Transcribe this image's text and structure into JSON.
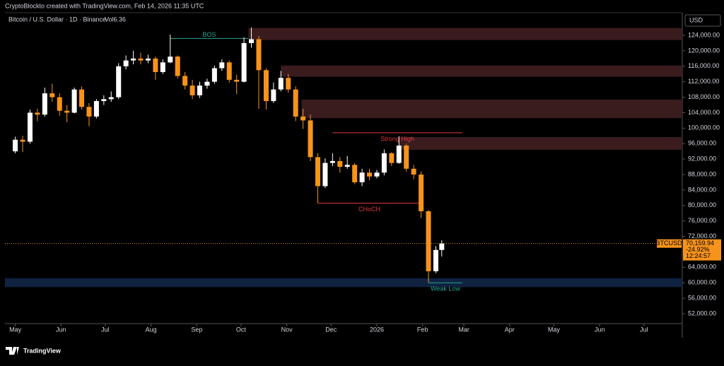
{
  "chart_data": {
    "type": "candlestick",
    "credit": "CryptoBlockto created with TradingView.com, Feb 14, 2026 11:35 UTC",
    "title": "Bitcoin / U.S. Dollar · 1D · Binance",
    "indicator": "Vol6.36",
    "currency": "USD",
    "brand": "TradingView",
    "up_color": "#ffffff",
    "down_color": "#f7931a",
    "x": [
      "2025-05-01",
      "2025-05-06",
      "2025-05-11",
      "2025-05-16",
      "2025-05-21",
      "2025-05-26",
      "2025-05-31",
      "2025-06-05",
      "2025-06-10",
      "2025-06-15",
      "2025-06-20",
      "2025-06-25",
      "2025-06-30",
      "2025-07-05",
      "2025-07-10",
      "2025-07-15",
      "2025-07-20",
      "2025-07-25",
      "2025-07-30",
      "2025-08-04",
      "2025-08-09",
      "2025-08-14",
      "2025-08-19",
      "2025-08-24",
      "2025-08-29",
      "2025-09-03",
      "2025-09-08",
      "2025-09-13",
      "2025-09-18",
      "2025-09-23",
      "2025-09-28",
      "2025-10-03",
      "2025-10-08",
      "2025-10-13",
      "2025-10-18",
      "2025-10-23",
      "2025-10-28",
      "2025-11-02",
      "2025-11-07",
      "2025-11-12",
      "2025-11-17",
      "2025-11-22",
      "2025-11-27",
      "2025-12-02",
      "2025-12-07",
      "2025-12-12",
      "2025-12-17",
      "2025-12-22",
      "2025-12-27",
      "2026-01-01",
      "2026-01-06",
      "2026-01-11",
      "2026-01-16",
      "2026-01-21",
      "2026-01-26",
      "2026-01-31",
      "2026-02-05",
      "2026-02-10",
      "2026-02-14"
    ],
    "open": [
      94000,
      97000,
      96500,
      104000,
      103500,
      109000,
      108000,
      104500,
      104000,
      110000,
      105500,
      103000,
      107000,
      107500,
      108000,
      116000,
      117500,
      118000,
      117500,
      118000,
      114500,
      117000,
      118500,
      113500,
      111000,
      108500,
      111000,
      112000,
      115500,
      117000,
      112500,
      112000,
      122000,
      123000,
      115000,
      107000,
      110000,
      113000,
      110000,
      103000,
      102000,
      92500,
      85000,
      91000,
      91500,
      90000,
      90500,
      86000,
      88500,
      87500,
      88500,
      93500,
      91000,
      95500,
      89500,
      88000,
      78500,
      63000,
      68500
    ],
    "high": [
      97800,
      98000,
      104800,
      105000,
      110500,
      111500,
      109000,
      106000,
      110500,
      110800,
      106500,
      107500,
      108500,
      109500,
      116800,
      118800,
      120000,
      119500,
      119000,
      118500,
      117800,
      124200,
      118800,
      114500,
      112500,
      112000,
      112800,
      116200,
      117800,
      117500,
      113800,
      123500,
      126000,
      123800,
      115500,
      111800,
      114800,
      114000,
      110800,
      105000,
      103500,
      93500,
      92200,
      93500,
      92500,
      92800,
      91000,
      89500,
      89500,
      89200,
      94500,
      93800,
      97900,
      96000,
      90500,
      88800,
      78800,
      69500,
      71000
    ],
    "low": [
      93500,
      93800,
      96000,
      101800,
      103000,
      106800,
      103200,
      101500,
      103800,
      104800,
      100500,
      102500,
      106000,
      106800,
      107500,
      115200,
      116500,
      116500,
      116800,
      112500,
      114000,
      116800,
      112800,
      110000,
      107500,
      107800,
      110200,
      111500,
      114800,
      111800,
      108800,
      111800,
      120800,
      105000,
      104800,
      106500,
      109500,
      109200,
      101800,
      99800,
      91500,
      80600,
      84500,
      90200,
      88500,
      89500,
      85500,
      85000,
      86500,
      87000,
      87800,
      90200,
      90800,
      88800,
      86800,
      76800,
      60000,
      62500,
      66800
    ],
    "close": [
      97000,
      96500,
      104000,
      103500,
      109000,
      108000,
      104500,
      104000,
      110000,
      105500,
      103000,
      107000,
      107500,
      108000,
      116000,
      117500,
      118000,
      117500,
      118000,
      114500,
      117000,
      118500,
      113500,
      111000,
      108500,
      111000,
      112000,
      115500,
      117000,
      112500,
      112000,
      122000,
      123000,
      115000,
      107000,
      110000,
      113000,
      110000,
      103000,
      102000,
      92500,
      85000,
      91000,
      91500,
      90000,
      90500,
      86000,
      88500,
      87500,
      88500,
      93500,
      91000,
      95500,
      89500,
      88000,
      78500,
      63000,
      68500,
      70159.94
    ],
    "xlim": [
      "2025-04-24",
      "2026-07-27"
    ],
    "xticks": [
      {
        "value": "2025-05-01",
        "label": "May"
      },
      {
        "value": "2025-06-01",
        "label": "Jun"
      },
      {
        "value": "2025-07-01",
        "label": "Jul"
      },
      {
        "value": "2025-08-01",
        "label": "Aug"
      },
      {
        "value": "2025-09-01",
        "label": "Sep"
      },
      {
        "value": "2025-10-01",
        "label": "Oct"
      },
      {
        "value": "2025-11-01",
        "label": "Nov"
      },
      {
        "value": "2025-12-01",
        "label": "Dec"
      },
      {
        "value": "2026-01-01",
        "label": "2026"
      },
      {
        "value": "2026-02-01",
        "label": "Feb"
      },
      {
        "value": "2026-03-01",
        "label": "Mar"
      },
      {
        "value": "2026-04-01",
        "label": "Apr"
      },
      {
        "value": "2026-05-01",
        "label": "May"
      },
      {
        "value": "2026-06-01",
        "label": "Jun"
      },
      {
        "value": "2026-07-01",
        "label": "Jul"
      }
    ],
    "ylim": [
      49450,
      129850
    ],
    "yticks": [
      {
        "value": 52000,
        "label": "52,000.00"
      },
      {
        "value": 56000,
        "label": "56,000.00"
      },
      {
        "value": 60000,
        "label": "60,000.00"
      },
      {
        "value": 64000,
        "label": "64,000.00"
      },
      {
        "value": 68000,
        "label": "68,000.00"
      },
      {
        "value": 72000,
        "label": "72,000.00"
      },
      {
        "value": 76000,
        "label": "76,000.00"
      },
      {
        "value": 80000,
        "label": "80,000.00"
      },
      {
        "value": 84000,
        "label": "84,000.00"
      },
      {
        "value": 88000,
        "label": "88,000.00"
      },
      {
        "value": 92000,
        "label": "92,000.00"
      },
      {
        "value": 96000,
        "label": "96,000.00"
      },
      {
        "value": 100000,
        "label": "100,000.00"
      },
      {
        "value": 104000,
        "label": "104,000.00"
      },
      {
        "value": 108000,
        "label": "108,000.00"
      },
      {
        "value": 112000,
        "label": "112,000.00"
      },
      {
        "value": 116000,
        "label": "116,000.00"
      },
      {
        "value": 120000,
        "label": "120,000.00"
      },
      {
        "value": 124000,
        "label": "124,000.00"
      }
    ],
    "zones": [
      {
        "start": "2025-10-06",
        "low": 122800,
        "high": 125900,
        "color": "#3a1c1e"
      },
      {
        "start": "2025-10-28",
        "low": 113300,
        "high": 116200,
        "color": "#3a1c1e"
      },
      {
        "start": "2025-11-11",
        "low": 102600,
        "high": 107400,
        "color": "#3a1c1e"
      },
      {
        "start": "2026-01-16",
        "low": 94400,
        "high": 97700,
        "color": "#3a1c1e"
      },
      {
        "start": "2025-04-24",
        "low": 58900,
        "high": 61200,
        "color": "#0f2240"
      }
    ],
    "levels": [
      {
        "label": "Strong High",
        "value": 98800,
        "start": "2025-12-02",
        "end": "2026-02-28",
        "color": "#e0383e"
      },
      {
        "label": "CHoCH",
        "value": 80600,
        "start": "2025-11-22",
        "end": "2026-01-31",
        "color": "#e0383e"
      },
      {
        "label": "Weak Low",
        "value": 60000,
        "start": "2026-02-05",
        "end": "2026-02-28",
        "color": "#26a69a"
      },
      {
        "label": "BOS",
        "value": 123200,
        "start": "2025-08-14",
        "end": "2025-10-06",
        "color": "#26a69a"
      }
    ],
    "price_tag": {
      "symbol": "BTCUSD",
      "value": 70159.94,
      "label": "70,159.94",
      "change": "-24.92%",
      "countdown": "12:24:57"
    }
  }
}
